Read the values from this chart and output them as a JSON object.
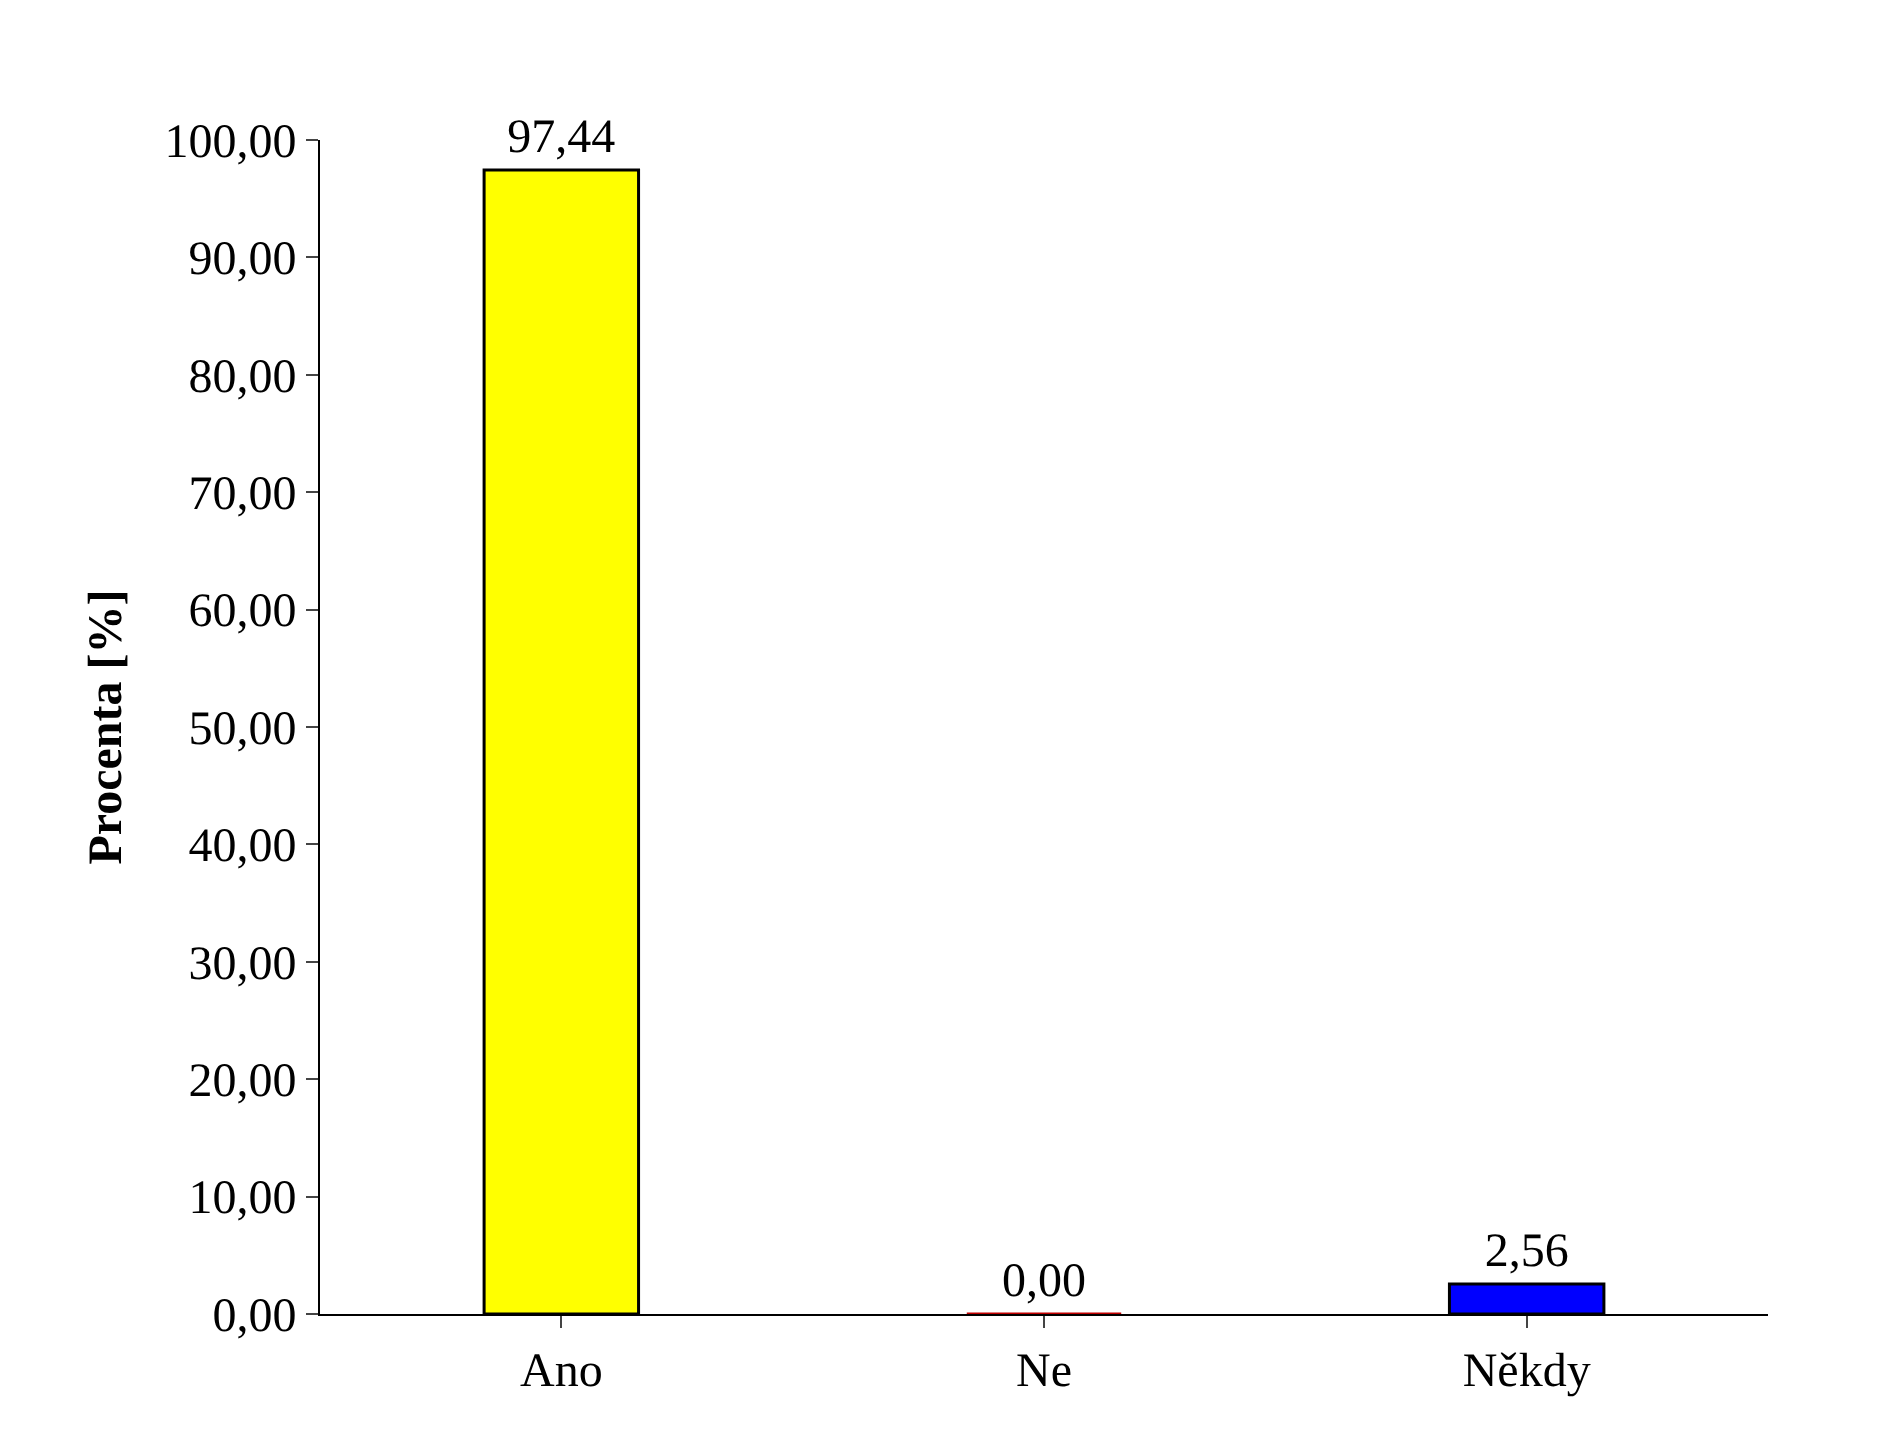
{
  "chart_data": {
    "type": "bar",
    "ylabel": "Procenta [%]",
    "categories": [
      "Ano",
      "Ne",
      "Někdy"
    ],
    "values": [
      97.44,
      0,
      2.56
    ],
    "colors": [
      "#ffff00",
      "#c00000",
      "#0000ff"
    ],
    "value_labels": [
      "97,44",
      "0,00",
      "2,56"
    ],
    "ylim": [
      0,
      100
    ],
    "yticks": [
      {
        "value": 0,
        "label": "0,00"
      },
      {
        "value": 10,
        "label": "10,00"
      },
      {
        "value": 20,
        "label": "20,00"
      },
      {
        "value": 30,
        "label": "30,00"
      },
      {
        "value": 40,
        "label": "40,00"
      },
      {
        "value": 50,
        "label": "50,00"
      },
      {
        "value": 60,
        "label": "60,00"
      },
      {
        "value": 70,
        "label": "70,00"
      },
      {
        "value": 80,
        "label": "80,00"
      },
      {
        "value": 90,
        "label": "90,00"
      },
      {
        "value": 100,
        "label": "100,00"
      }
    ],
    "grid": false
  }
}
